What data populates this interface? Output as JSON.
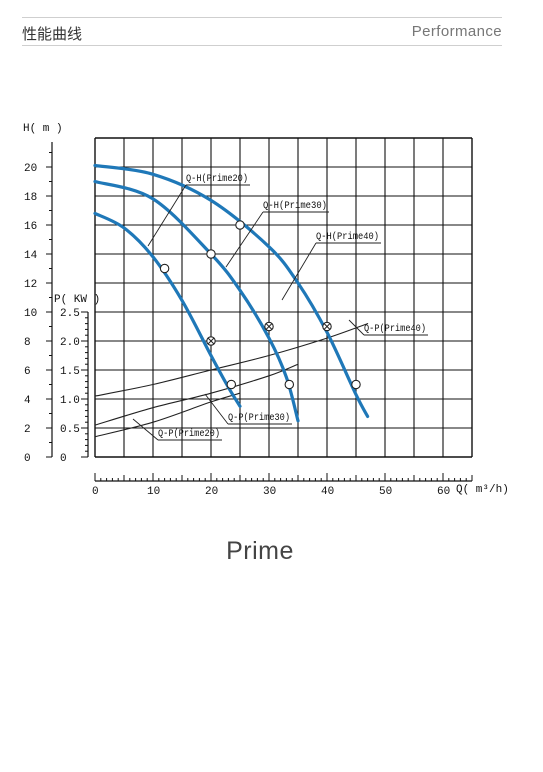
{
  "header": {
    "title_cn": "性能曲线",
    "title_en": "Performance"
  },
  "caption": "Prime",
  "colors": {
    "qh_curve": "#1f78b8",
    "qp_curve": "#222222",
    "grid": "#111111"
  },
  "chart_data": {
    "type": "line",
    "x_axis": {
      "label": "Q( m³/h)",
      "range": [
        0,
        65
      ],
      "ticks": [
        0,
        10,
        20,
        30,
        40,
        50,
        60
      ]
    },
    "y_axis_head": {
      "label": "H( m )",
      "range": [
        0,
        22
      ],
      "ticks": [
        0,
        2,
        4,
        6,
        8,
        10,
        12,
        14,
        16,
        18,
        20
      ]
    },
    "y_axis_power": {
      "label": "P( KW )",
      "range": [
        0,
        2.5
      ],
      "ticks": [
        "0",
        "0.5",
        "1.0",
        "1.5",
        "2.0",
        "2.5"
      ]
    },
    "grid": true,
    "series": [
      {
        "name": "Q-H(Prime20)",
        "kind": "head",
        "x": [
          0,
          5,
          10,
          15,
          20,
          23,
          25
        ],
        "y": [
          16.8,
          15.8,
          13.8,
          10.8,
          7.0,
          4.8,
          3.5
        ],
        "markers": [
          [
            12,
            13
          ],
          [
            20,
            8
          ],
          [
            23.5,
            5
          ]
        ]
      },
      {
        "name": "Q-H(Prime30)",
        "kind": "head",
        "x": [
          0,
          10,
          20,
          25,
          30,
          33,
          35
        ],
        "y": [
          19,
          17.8,
          14,
          11.5,
          8.2,
          5.5,
          2.5
        ],
        "markers": [
          [
            20,
            14
          ],
          [
            30,
            9
          ],
          [
            33.5,
            5
          ]
        ]
      },
      {
        "name": "Q-H(Prime40)",
        "kind": "head",
        "x": [
          0,
          10,
          20,
          30,
          35,
          40,
          45,
          47
        ],
        "y": [
          20.1,
          19.5,
          17.7,
          14.5,
          12,
          8.6,
          4.3,
          2.8
        ],
        "markers": [
          [
            25,
            16
          ],
          [
            40,
            9
          ],
          [
            45,
            5
          ]
        ]
      },
      {
        "name": "Q-P(Prime20)",
        "kind": "power",
        "x": [
          0,
          10,
          20,
          25
        ],
        "y": [
          0.35,
          0.6,
          0.95,
          1.1
        ]
      },
      {
        "name": "Q-P(Prime30)",
        "kind": "power",
        "x": [
          0,
          10,
          20,
          30,
          35
        ],
        "y": [
          0.55,
          0.85,
          1.1,
          1.4,
          1.6
        ]
      },
      {
        "name": "Q-P(Prime40)",
        "kind": "power",
        "x": [
          0,
          10,
          20,
          30,
          40,
          47
        ],
        "y": [
          1.05,
          1.25,
          1.5,
          1.75,
          2.05,
          2.3
        ]
      }
    ]
  }
}
